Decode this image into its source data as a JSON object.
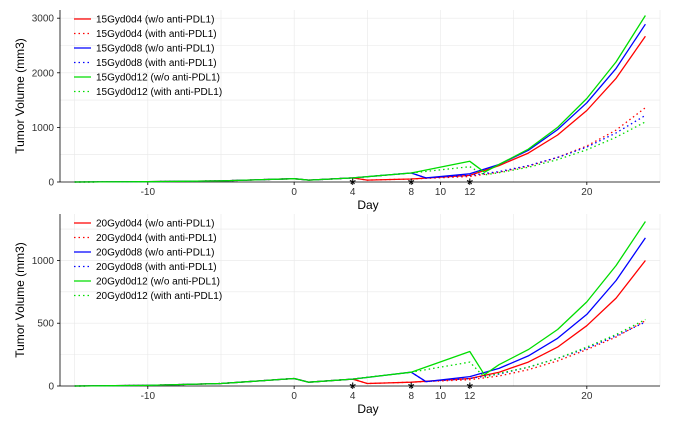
{
  "chart_data": [
    {
      "type": "line",
      "xlabel": "Day",
      "ylabel": "Tumor Volume (mm3)",
      "xlim": [
        -16,
        25
      ],
      "ylim": [
        0,
        3150
      ],
      "x_ticks": [
        -10,
        0,
        4,
        8,
        10,
        12,
        20
      ],
      "y_ticks": [
        0,
        1000,
        2000,
        3000
      ],
      "markers": {
        "symbol": "*",
        "x": [
          4,
          8,
          12
        ],
        "y": 0
      },
      "legend_position": "top-left",
      "series": [
        {
          "name": "15Gyd0d4 (w/o anti-PDL1)",
          "color": "#ff0000",
          "dash": "solid",
          "x": [
            -15,
            -10,
            -5,
            0,
            1,
            4,
            5,
            8,
            12,
            14,
            16,
            18,
            20,
            22,
            24
          ],
          "y": [
            0,
            5,
            20,
            60,
            35,
            75,
            35,
            55,
            120,
            300,
            530,
            860,
            1310,
            1900,
            2670
          ]
        },
        {
          "name": "15Gyd0d4 (with anti-PDL1)",
          "color": "#ff0000",
          "dash": "dotted",
          "x": [
            -15,
            -10,
            -5,
            0,
            1,
            4,
            5,
            8,
            12,
            14,
            16,
            18,
            20,
            22,
            24
          ],
          "y": [
            0,
            5,
            20,
            60,
            35,
            75,
            35,
            55,
            100,
            180,
            290,
            450,
            660,
            950,
            1360
          ]
        },
        {
          "name": "15Gyd0d8 (w/o anti-PDL1)",
          "color": "#0000ff",
          "dash": "solid",
          "x": [
            -15,
            -10,
            -5,
            0,
            1,
            4,
            8,
            9,
            12,
            14,
            16,
            18,
            20,
            22,
            24
          ],
          "y": [
            0,
            5,
            20,
            60,
            35,
            75,
            165,
            75,
            150,
            320,
            580,
            960,
            1450,
            2080,
            2890
          ]
        },
        {
          "name": "15Gyd0d8 (with anti-PDL1)",
          "color": "#0000ff",
          "dash": "dotted",
          "x": [
            -15,
            -10,
            -5,
            0,
            1,
            4,
            8,
            9,
            12,
            14,
            16,
            18,
            20,
            22,
            24
          ],
          "y": [
            0,
            5,
            20,
            60,
            35,
            75,
            165,
            75,
            120,
            190,
            300,
            450,
            640,
            900,
            1220
          ]
        },
        {
          "name": "15Gyd0d12 (w/o anti-PDL1)",
          "color": "#00dd00",
          "dash": "solid",
          "x": [
            -15,
            -10,
            -5,
            0,
            1,
            4,
            8,
            12,
            13,
            14,
            16,
            18,
            20,
            22,
            24
          ],
          "y": [
            0,
            5,
            20,
            60,
            35,
            75,
            165,
            380,
            180,
            320,
            600,
            1000,
            1530,
            2200,
            3050
          ]
        },
        {
          "name": "15Gyd0d12 (with anti-PDL1)",
          "color": "#00dd00",
          "dash": "dotted",
          "x": [
            -15,
            -10,
            -5,
            0,
            1,
            4,
            8,
            12,
            13,
            14,
            16,
            18,
            20,
            22,
            24
          ],
          "y": [
            0,
            5,
            20,
            60,
            35,
            75,
            165,
            280,
            130,
            170,
            270,
            410,
            590,
            820,
            1100
          ]
        }
      ]
    },
    {
      "type": "line",
      "xlabel": "Day",
      "ylabel": "Tumor Volume (mm3)",
      "xlim": [
        -16,
        25
      ],
      "ylim": [
        0,
        1370
      ],
      "x_ticks": [
        -10,
        0,
        4,
        8,
        10,
        12,
        20
      ],
      "y_ticks": [
        0,
        500,
        1000
      ],
      "markers": {
        "symbol": "*",
        "x": [
          4,
          8,
          12
        ],
        "y": 0
      },
      "legend_position": "top-left",
      "series": [
        {
          "name": "20Gyd0d4 (w/o anti-PDL1)",
          "color": "#ff0000",
          "dash": "solid",
          "x": [
            -15,
            -10,
            -5,
            0,
            1,
            4,
            5,
            8,
            12,
            14,
            16,
            18,
            20,
            22,
            24
          ],
          "y": [
            0,
            5,
            20,
            60,
            30,
            55,
            20,
            30,
            60,
            110,
            190,
            310,
            480,
            700,
            1000
          ]
        },
        {
          "name": "20Gyd0d4 (with anti-PDL1)",
          "color": "#ff0000",
          "dash": "dotted",
          "x": [
            -15,
            -10,
            -5,
            0,
            1,
            4,
            5,
            8,
            12,
            14,
            16,
            18,
            20,
            22,
            24
          ],
          "y": [
            0,
            5,
            20,
            60,
            30,
            55,
            20,
            30,
            50,
            80,
            130,
            200,
            290,
            390,
            520
          ]
        },
        {
          "name": "20Gyd0d8 (w/o anti-PDL1)",
          "color": "#0000ff",
          "dash": "solid",
          "x": [
            -15,
            -10,
            -5,
            0,
            1,
            4,
            8,
            9,
            12,
            14,
            16,
            18,
            20,
            22,
            24
          ],
          "y": [
            0,
            5,
            20,
            60,
            30,
            55,
            110,
            35,
            75,
            140,
            240,
            380,
            570,
            840,
            1180
          ]
        },
        {
          "name": "20Gyd0d8 (with anti-PDL1)",
          "color": "#0000ff",
          "dash": "dotted",
          "x": [
            -15,
            -10,
            -5,
            0,
            1,
            4,
            8,
            9,
            12,
            14,
            16,
            18,
            20,
            22,
            24
          ],
          "y": [
            0,
            5,
            20,
            60,
            30,
            55,
            110,
            35,
            60,
            95,
            150,
            220,
            300,
            400,
            510
          ]
        },
        {
          "name": "20Gyd0d12 (w/o anti-PDL1)",
          "color": "#00dd00",
          "dash": "solid",
          "x": [
            -15,
            -10,
            -5,
            0,
            1,
            4,
            8,
            12,
            13,
            14,
            16,
            18,
            20,
            22,
            24
          ],
          "y": [
            0,
            5,
            20,
            60,
            30,
            55,
            110,
            275,
            90,
            170,
            290,
            450,
            670,
            960,
            1310
          ]
        },
        {
          "name": "20Gyd0d12 (with anti-PDL1)",
          "color": "#00dd00",
          "dash": "dotted",
          "x": [
            -15,
            -10,
            -5,
            0,
            1,
            4,
            8,
            12,
            13,
            14,
            16,
            18,
            20,
            22,
            24
          ],
          "y": [
            0,
            5,
            20,
            60,
            30,
            55,
            110,
            190,
            70,
            100,
            150,
            220,
            310,
            410,
            530
          ]
        }
      ]
    }
  ]
}
